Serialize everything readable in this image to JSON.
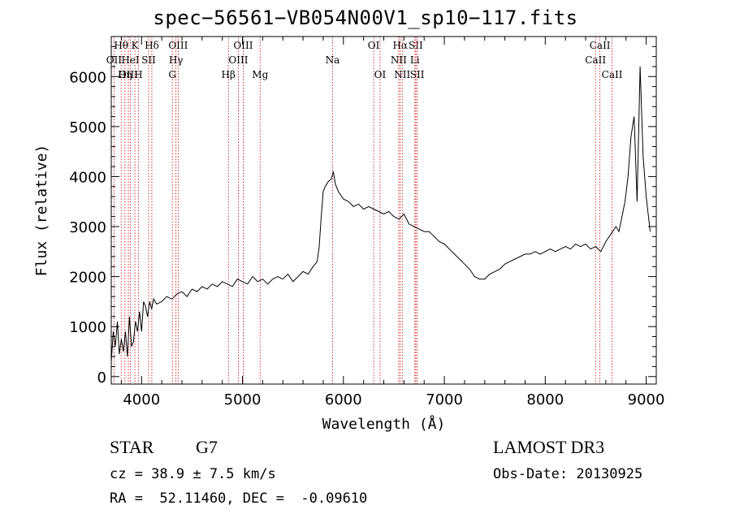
{
  "chart_data": {
    "type": "line",
    "title": "spec−56561−VB054N00V1_sp10−117.fits",
    "xlabel": "Wavelength (Å)",
    "ylabel": "Flux (relative)",
    "xlim": [
      3700,
      9100
    ],
    "ylim": [
      -150,
      6800
    ],
    "xticks": [
      4000,
      5000,
      6000,
      7000,
      8000,
      9000
    ],
    "yticks": [
      0,
      1000,
      2000,
      3000,
      4000,
      5000,
      6000
    ],
    "grid": false,
    "series": [
      {
        "name": "flux",
        "x": [
          3700,
          3720,
          3740,
          3760,
          3780,
          3800,
          3820,
          3840,
          3860,
          3880,
          3900,
          3920,
          3940,
          3960,
          3980,
          4000,
          4020,
          4040,
          4060,
          4080,
          4100,
          4120,
          4150,
          4200,
          4250,
          4300,
          4350,
          4400,
          4450,
          4500,
          4550,
          4600,
          4650,
          4700,
          4750,
          4800,
          4850,
          4900,
          4950,
          5000,
          5050,
          5100,
          5150,
          5200,
          5250,
          5300,
          5350,
          5400,
          5450,
          5500,
          5550,
          5600,
          5650,
          5700,
          5740,
          5760,
          5780,
          5800,
          5820,
          5850,
          5880,
          5900,
          5920,
          5950,
          6000,
          6050,
          6100,
          6150,
          6200,
          6250,
          6300,
          6350,
          6400,
          6450,
          6500,
          6550,
          6600,
          6650,
          6700,
          6750,
          6800,
          6850,
          6900,
          6950,
          7000,
          7050,
          7100,
          7150,
          7200,
          7250,
          7300,
          7350,
          7400,
          7450,
          7500,
          7550,
          7600,
          7650,
          7700,
          7750,
          7800,
          7850,
          7900,
          7950,
          8000,
          8050,
          8100,
          8150,
          8200,
          8250,
          8300,
          8350,
          8400,
          8450,
          8500,
          8550,
          8600,
          8650,
          8700,
          8730,
          8760,
          8790,
          8820,
          8850,
          8880,
          8910,
          8940,
          8970,
          9000,
          9040
        ],
        "y": [
          300,
          900,
          600,
          1100,
          450,
          750,
          500,
          900,
          400,
          1200,
          600,
          700,
          1100,
          900,
          1300,
          900,
          1500,
          1400,
          1200,
          1500,
          1350,
          1550,
          1450,
          1500,
          1600,
          1550,
          1650,
          1700,
          1600,
          1750,
          1700,
          1800,
          1750,
          1850,
          1800,
          1900,
          1850,
          1800,
          1950,
          1900,
          1850,
          2000,
          1900,
          1950,
          1850,
          1950,
          2000,
          1950,
          2050,
          1900,
          2000,
          2100,
          2050,
          2200,
          2300,
          2600,
          3200,
          3700,
          3800,
          3900,
          3950,
          4100,
          3850,
          3700,
          3550,
          3500,
          3400,
          3450,
          3350,
          3400,
          3350,
          3300,
          3250,
          3300,
          3200,
          3150,
          3250,
          3050,
          3000,
          2950,
          2900,
          2900,
          2800,
          2700,
          2650,
          2550,
          2450,
          2350,
          2250,
          2150,
          2000,
          1950,
          1950,
          2050,
          2100,
          2150,
          2250,
          2300,
          2350,
          2400,
          2450,
          2450,
          2500,
          2450,
          2500,
          2550,
          2500,
          2550,
          2600,
          2550,
          2650,
          2600,
          2650,
          2550,
          2600,
          2500,
          2700,
          2850,
          3000,
          2900,
          3200,
          3500,
          4000,
          4800,
          5200,
          3500,
          6200,
          4400,
          3600,
          2900
        ]
      }
    ],
    "spectral_lines": [
      {
        "label": "Hθ",
        "x": 3798,
        "row": 0
      },
      {
        "label": "OII",
        "x": 3727,
        "row": 1
      },
      {
        "label": "OIII",
        "x": 3869,
        "row": 2
      },
      {
        "label": "K",
        "x": 3934,
        "row": 0
      },
      {
        "label": "HeI",
        "x": 3889,
        "row": 1
      },
      {
        "label": "Hη",
        "x": 3835,
        "row": 2
      },
      {
        "label": "SII",
        "x": 4070,
        "row": 1
      },
      {
        "label": "H",
        "x": 3968,
        "row": 2
      },
      {
        "label": "Hδ",
        "x": 4102,
        "row": 0
      },
      {
        "label": "OIII",
        "x": 4363,
        "row": 0
      },
      {
        "label": "Hγ",
        "x": 4341,
        "row": 1
      },
      {
        "label": "G",
        "x": 4305,
        "row": 2
      },
      {
        "label": "Hβ",
        "x": 4861,
        "row": 2
      },
      {
        "label": "OIII",
        "x": 5007,
        "row": 0
      },
      {
        "label": "OIII",
        "x": 4959,
        "row": 1
      },
      {
        "label": "Mg",
        "x": 5175,
        "row": 2
      },
      {
        "label": "Na",
        "x": 5893,
        "row": 1
      },
      {
        "label": "OI",
        "x": 6300,
        "row": 0
      },
      {
        "label": "OI",
        "x": 6363,
        "row": 2
      },
      {
        "label": "Hα",
        "x": 6563,
        "row": 0
      },
      {
        "label": "NII",
        "x": 6548,
        "row": 1
      },
      {
        "label": "NII",
        "x": 6583,
        "row": 2
      },
      {
        "label": "SII",
        "x": 6717,
        "row": 0
      },
      {
        "label": "Li",
        "x": 6708,
        "row": 1
      },
      {
        "label": "SII",
        "x": 6731,
        "row": 2
      },
      {
        "label": "CaII",
        "x": 8542,
        "row": 0
      },
      {
        "label": "CaII",
        "x": 8498,
        "row": 1
      },
      {
        "label": "CaII",
        "x": 8662,
        "row": 2
      }
    ]
  },
  "info": {
    "class": "STAR",
    "subclass": "G7",
    "survey": "LAMOST DR3",
    "redshift": "cz = 38.9 ± 7.5 km/s",
    "obs_date": "Obs-Date: 20130925",
    "coords": "RA =  52.11460, DEC =  -0.09610"
  }
}
